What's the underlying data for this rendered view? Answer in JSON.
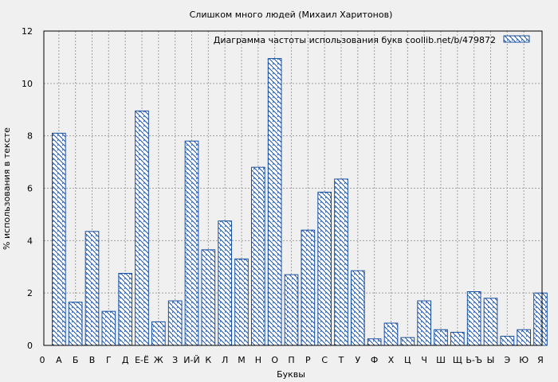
{
  "chart_data": {
    "type": "bar",
    "title": "Слишком много людей (Михаил Харитонов)",
    "xlabel": "Буквы",
    "ylabel": "% использования в тексте",
    "ylim": [
      0,
      12
    ],
    "yticks": [
      "0",
      "2",
      "4",
      "6",
      "8",
      "10",
      "12"
    ],
    "grid": true,
    "legend_position": "top-right",
    "x_tick_labels": [
      "0",
      "А",
      "Б",
      "В",
      "Г",
      "Д",
      "Е-Ё",
      "Ж",
      "З",
      "И-Й",
      "К",
      "Л",
      "М",
      "Н",
      "О",
      "П",
      "Р",
      "С",
      "Т",
      "У",
      "Ф",
      "Х",
      "Ц",
      "Ч",
      "Ш",
      "Щ",
      "Ь-Ъ",
      "Ы",
      "Э",
      "Ю",
      "Я"
    ],
    "categories": [
      "А",
      "Б",
      "В",
      "Г",
      "Д",
      "Е-Ё",
      "Ж",
      "З",
      "И-Й",
      "К",
      "Л",
      "М",
      "Н",
      "О",
      "П",
      "Р",
      "С",
      "Т",
      "У",
      "Ф",
      "Х",
      "Ц",
      "Ч",
      "Ш",
      "Щ",
      "Ь-Ъ",
      "Ы",
      "Э",
      "Ю",
      "Я"
    ],
    "series": [
      {
        "name": "Диаграмма частоты использования букв  coollib.net/b/479872",
        "values": [
          8.1,
          1.65,
          4.35,
          1.3,
          2.75,
          8.95,
          0.9,
          1.7,
          7.8,
          3.65,
          4.75,
          3.3,
          6.8,
          10.95,
          2.7,
          4.4,
          5.85,
          6.35,
          2.85,
          0.25,
          0.85,
          0.3,
          1.7,
          0.6,
          0.5,
          2.05,
          1.8,
          0.35,
          0.6,
          2.0
        ]
      }
    ],
    "colors": {
      "bar_stroke": "#1a4fa0",
      "hatch": "#1a4fa0",
      "grid": "#a0a0a0",
      "background": "#f0f0f0"
    }
  }
}
